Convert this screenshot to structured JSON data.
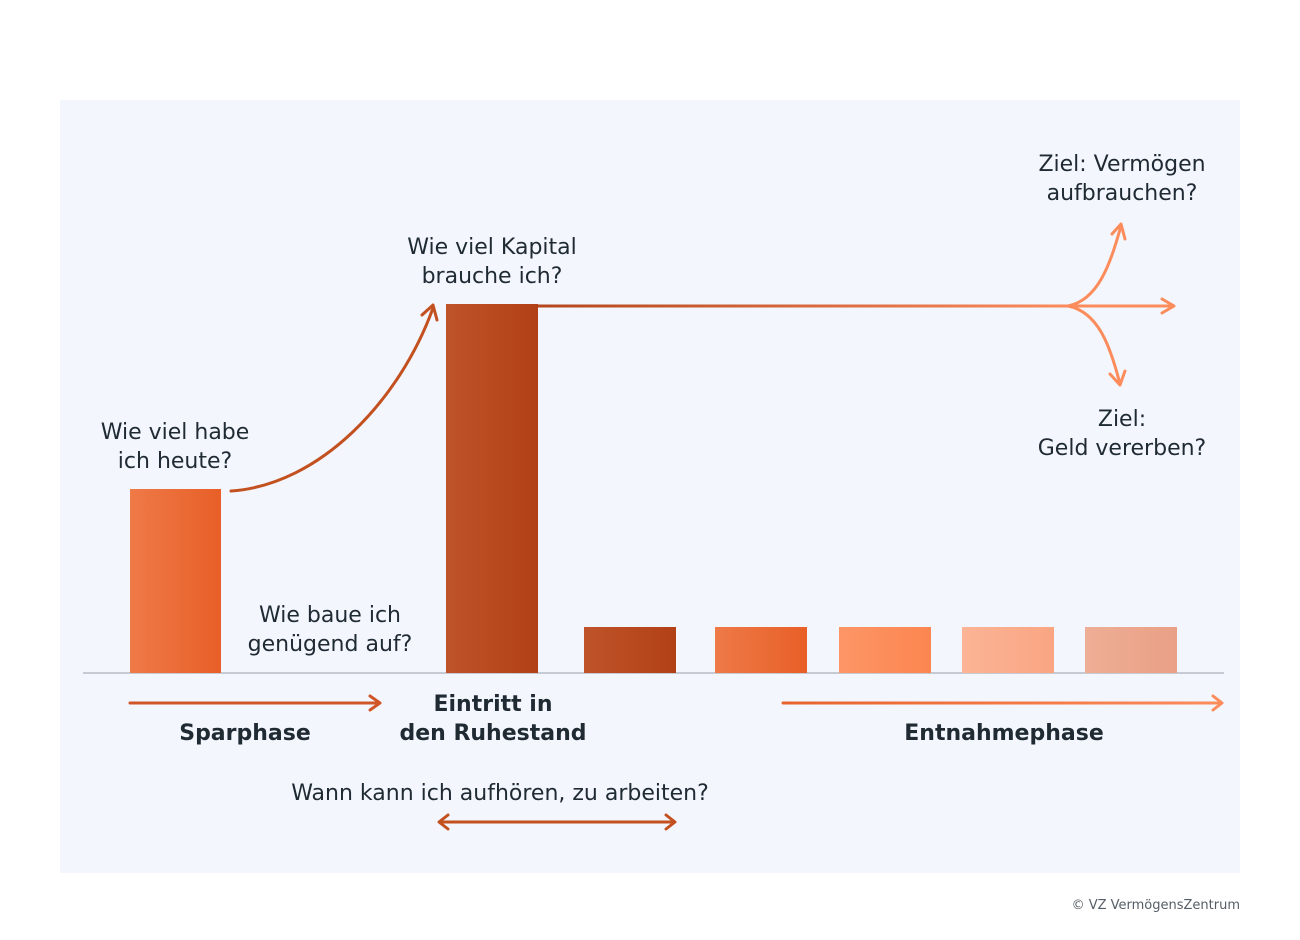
{
  "questions": {
    "have_today": [
      "Wie viel habe",
      "ich heute?"
    ],
    "build_up": [
      "Wie baue ich",
      "genügend auf?"
    ],
    "capital_needed": [
      "Wie viel Kapital",
      "brauche ich?"
    ],
    "goal_spend": [
      "Ziel: Vermögen",
      "aufbrauchen?"
    ],
    "goal_inherit": [
      "Ziel:",
      "Geld vererben?"
    ],
    "when_stop": "Wann kann ich aufhören, zu arbeiten?"
  },
  "phases": {
    "savings": "Sparphase",
    "retirement": [
      "Eintritt in",
      "den Ruhestand"
    ],
    "withdrawal": "Entnahmephase"
  },
  "copyright": "© VZ VermögensZentrum",
  "colors": {
    "panel": "#f3f6fd",
    "orange": "#e8632e",
    "rust": "#b5461d",
    "light_orange": "#fc8c5c",
    "peach": "#f9a98a",
    "salmon": "#eba48a"
  }
}
